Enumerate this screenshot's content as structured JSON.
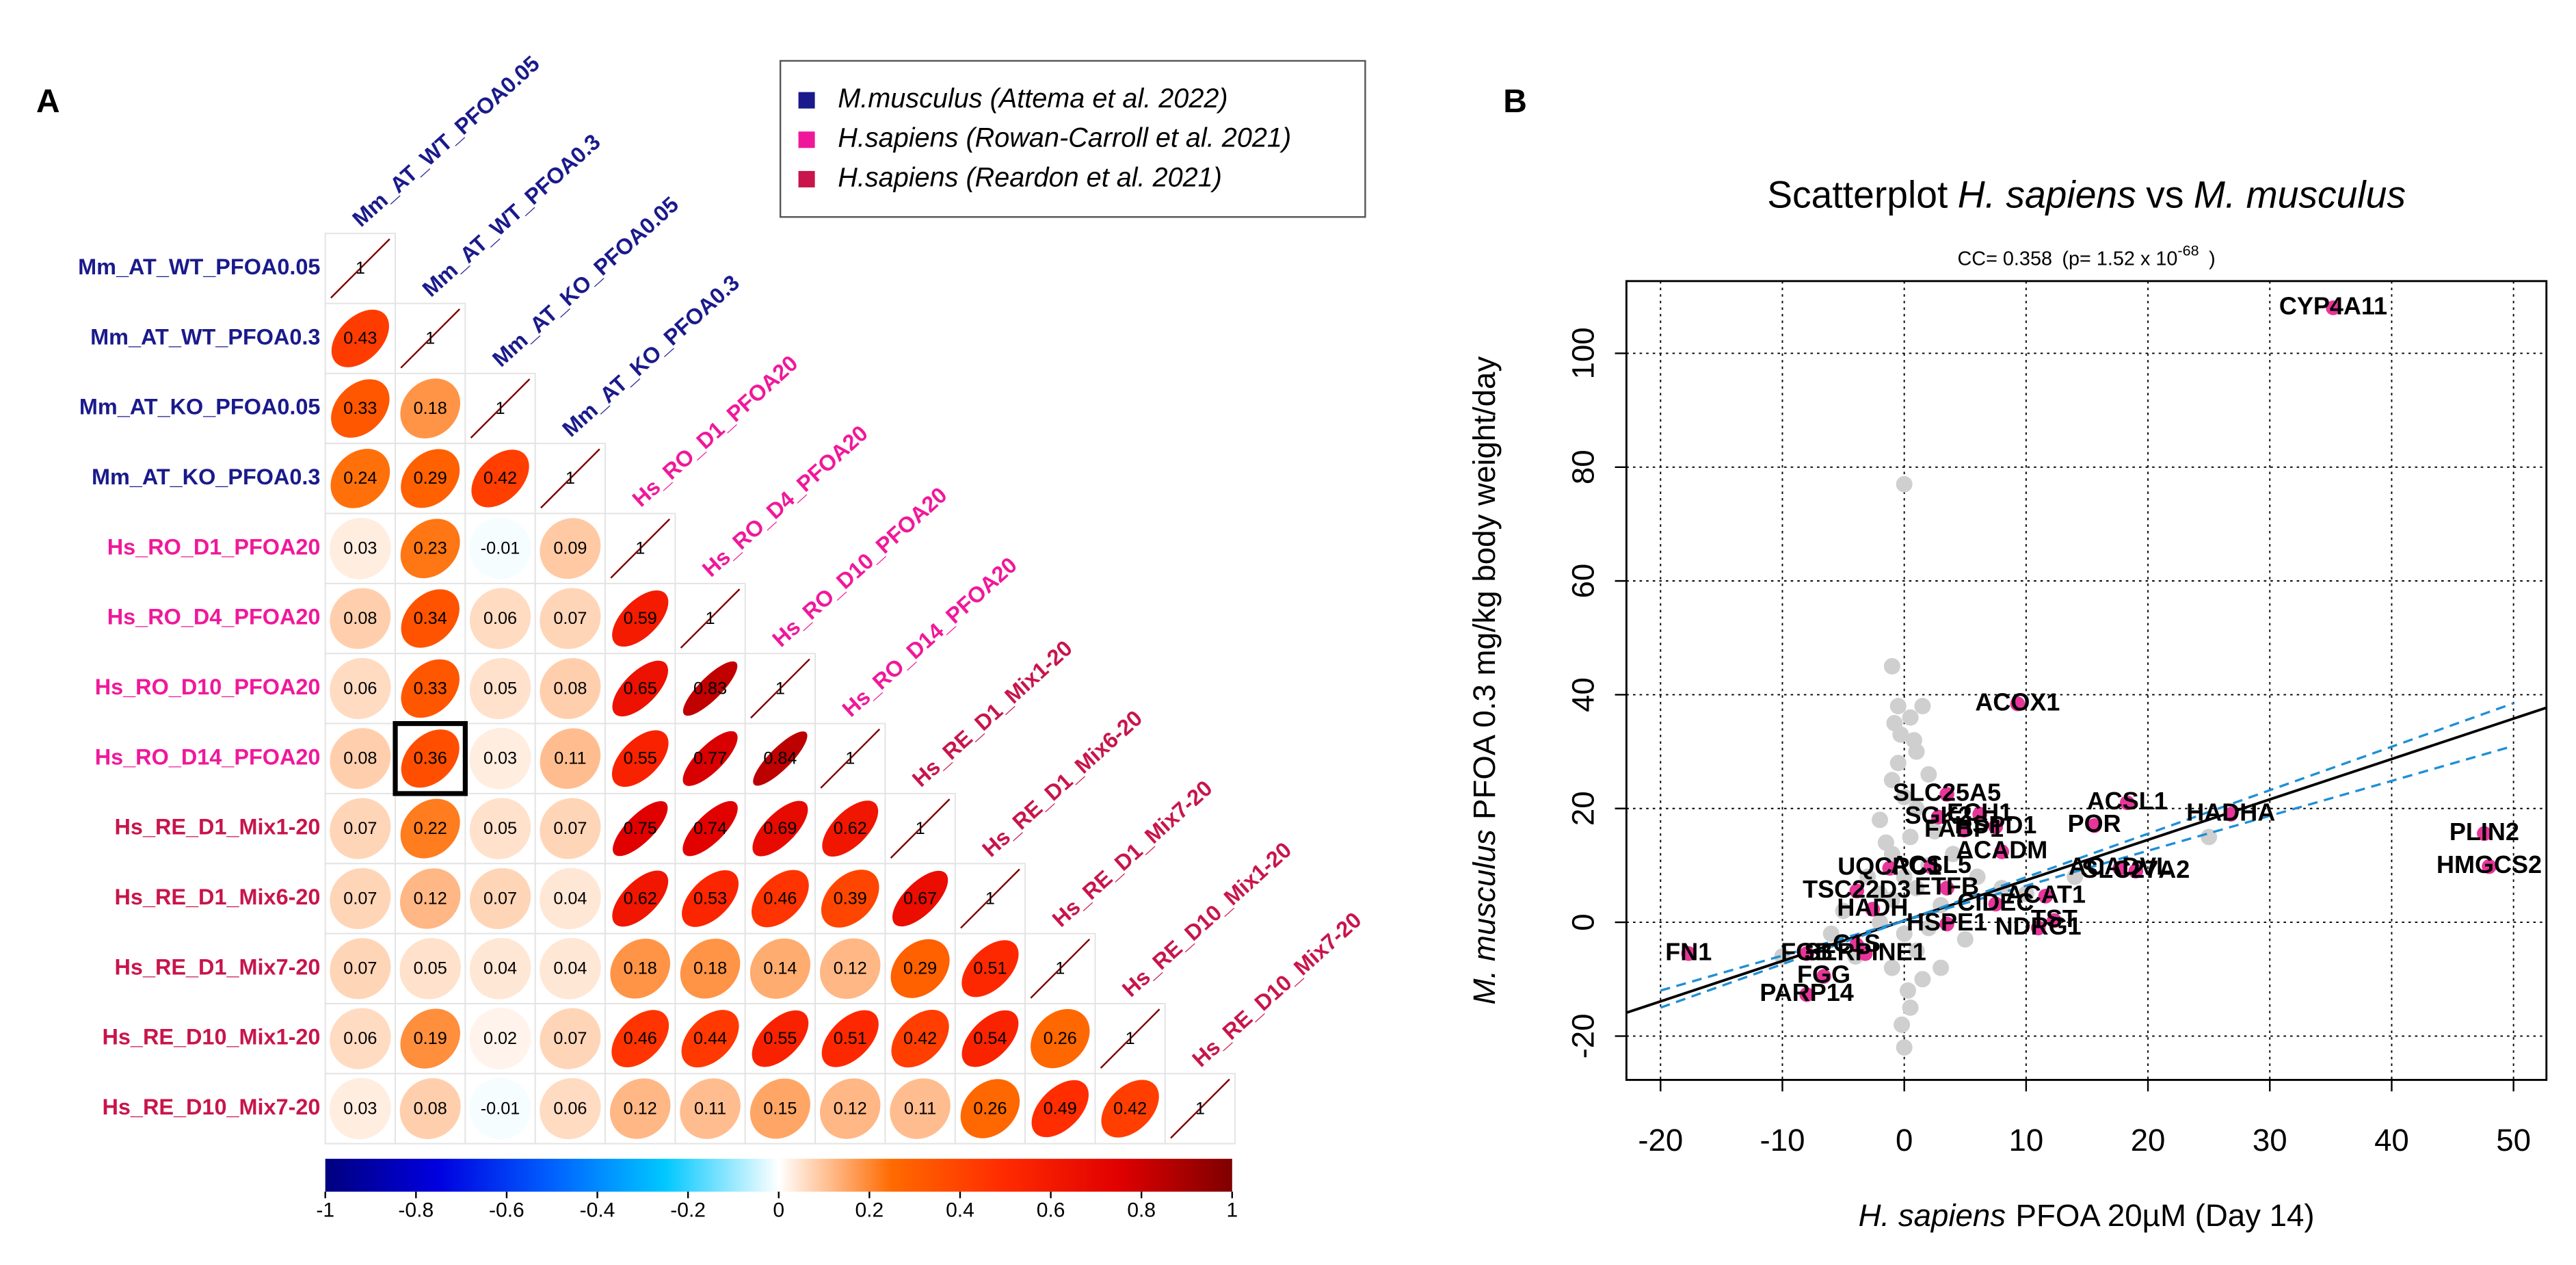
{
  "chart_data": [
    {
      "type": "corrplot",
      "panel": "A",
      "labels": [
        "Mm_AT_WT_PFOA0.05",
        "Mm_AT_WT_PFOA0.3",
        "Mm_AT_KO_PFOA0.05",
        "Mm_AT_KO_PFOA0.3",
        "Hs_RO_D1_PFOA20",
        "Hs_RO_D4_PFOA20",
        "Hs_RO_D10_PFOA20",
        "Hs_RO_D14_PFOA20",
        "Hs_RE_D1_Mix1-20",
        "Hs_RE_D1_Mix6-20",
        "Hs_RE_D1_Mix7-20",
        "Hs_RE_D10_Mix1-20",
        "Hs_RE_D10_Mix7-20"
      ],
      "label_groups": [
        0,
        0,
        0,
        0,
        1,
        1,
        1,
        1,
        2,
        2,
        2,
        2,
        2
      ],
      "groups": [
        {
          "name": "M.musculus (Attema et al. 2022)",
          "color": "#1a1a8c"
        },
        {
          "name": "H.sapiens (Rowan-Carroll et al. 2021)",
          "color": "#f0189a"
        },
        {
          "name": "H.sapiens (Reardon et al. 2021)",
          "color": "#c8154b"
        }
      ],
      "matrix": [
        [
          1
        ],
        [
          0.43,
          1
        ],
        [
          0.33,
          0.18,
          1
        ],
        [
          0.24,
          0.29,
          0.42,
          1
        ],
        [
          0.03,
          0.23,
          -0.01,
          0.09,
          1
        ],
        [
          0.08,
          0.34,
          0.06,
          0.07,
          0.59,
          1
        ],
        [
          0.06,
          0.33,
          0.05,
          0.08,
          0.65,
          0.83,
          1
        ],
        [
          0.08,
          0.36,
          0.03,
          0.11,
          0.55,
          0.77,
          0.84,
          1
        ],
        [
          0.07,
          0.22,
          0.05,
          0.07,
          0.75,
          0.74,
          0.69,
          0.62,
          1
        ],
        [
          0.07,
          0.12,
          0.07,
          0.04,
          0.62,
          0.53,
          0.46,
          0.39,
          0.67,
          1
        ],
        [
          0.07,
          0.05,
          0.04,
          0.04,
          0.18,
          0.18,
          0.14,
          0.12,
          0.29,
          0.51,
          1
        ],
        [
          0.06,
          0.19,
          0.02,
          0.07,
          0.46,
          0.44,
          0.55,
          0.51,
          0.42,
          0.54,
          0.26,
          1
        ],
        [
          0.03,
          0.08,
          -0.01,
          0.06,
          0.12,
          0.11,
          0.15,
          0.12,
          0.11,
          0.26,
          0.49,
          0.42,
          1
        ]
      ],
      "highlight": [
        7,
        1
      ],
      "colormap": [
        "#00007F",
        "#0000E0",
        "#0060FF",
        "#00C8FF",
        "#FFFFFF",
        "#FF6A00",
        "#FF2A00",
        "#E00000",
        "#7F0000"
      ],
      "colorbar_lim": [
        -1,
        1
      ],
      "colorbar_ticks": [
        -1,
        -0.8,
        -0.6,
        -0.4,
        -0.2,
        0,
        0.2,
        0.4,
        0.6,
        0.8,
        1
      ]
    },
    {
      "type": "scatter",
      "panel": "B",
      "title_parts": [
        "Scatterplot",
        "H. sapiens",
        "vs",
        "M. musculus"
      ],
      "subtitle_parts": [
        "CC= 0.358",
        "(p= 1.52 x 10",
        "-68",
        ")"
      ],
      "xlabel_parts": [
        "H. sapiens",
        "PFOA 20µM (Day 14)"
      ],
      "ylabel_parts": [
        "M. musculus",
        "PFOA 0.3 mg/kg body weight/day"
      ],
      "xlim": [
        -22.8,
        52.7
      ],
      "ylim": [
        -27.7,
        112.7
      ],
      "xticks": [
        -20,
        -10,
        0,
        10,
        20,
        30,
        40,
        50
      ],
      "yticks": [
        -20,
        0,
        20,
        40,
        60,
        80,
        100
      ],
      "grid": true,
      "background_points": {
        "color": "#cfcfcf",
        "x": [
          0,
          -1,
          -0.5,
          0.5,
          1.5,
          -0.3,
          1,
          2,
          -1,
          0,
          1,
          -2,
          0.5,
          -1,
          2,
          -3,
          1,
          -1,
          3,
          -2,
          0,
          1,
          -1,
          0.3,
          0.5,
          -0.2,
          0,
          4,
          6,
          8,
          -5,
          -6,
          5,
          3,
          -4,
          2,
          -2,
          1.5,
          0,
          -1.5,
          2.5,
          -0.5,
          0.8,
          -0.8,
          10,
          14,
          -10,
          25
        ],
        "y": [
          77,
          45,
          38,
          36,
          38,
          33,
          30,
          26,
          25,
          22,
          20,
          18,
          15,
          12,
          10,
          8,
          6,
          4,
          3,
          0,
          -2,
          -5,
          -8,
          -12,
          -15,
          -18,
          -22,
          12,
          8,
          6,
          2,
          -2,
          -3,
          -8,
          -6,
          -1,
          5,
          -10,
          8,
          14,
          16,
          28,
          32,
          35,
          5,
          8,
          -6,
          15
        ]
      },
      "points": {
        "color": "#e8359a",
        "labels": [
          "CYP4A11",
          "ACOX1",
          "PLIN2",
          "HMGCS2",
          "FN1",
          "HADHA",
          "ACSL1",
          "HSPD1",
          "ECH1",
          "POR",
          "SLC25A5",
          "SGK2",
          "FABP1",
          "ACADM",
          "ACSL5",
          "ACADVL",
          "SLC27A2",
          "ETFB",
          "ACAT1",
          "CIDEC",
          "UQCRC1",
          "TSC22D3",
          "HADH",
          "C1S",
          "HSPE1",
          "SERPINE1",
          "TST",
          "NDRG1",
          "FGB",
          "FGG",
          "PARP14"
        ],
        "x": [
          35.2,
          9.3,
          47.6,
          48,
          -17.7,
          26.8,
          18.3,
          7.5,
          6.2,
          15.6,
          3.5,
          2.8,
          4.9,
          8,
          2.2,
          17.7,
          19,
          3.5,
          11.6,
          7.5,
          -1.2,
          -3.9,
          -2.6,
          -3.9,
          3.5,
          -3.2,
          12.3,
          11,
          -8,
          -6.6,
          -8
        ],
        "y": [
          108,
          38.4,
          15.6,
          9.8,
          -5.5,
          19,
          21,
          16.8,
          19,
          17,
          22.5,
          18.5,
          16.2,
          12.4,
          9.8,
          9.5,
          9,
          6,
          4.6,
          3.2,
          9.5,
          5.5,
          2.3,
          -4,
          -0.3,
          -5.5,
          0.3,
          -1,
          -5.5,
          -9.5,
          -12.7
        ]
      },
      "fit": {
        "slope": 0.71,
        "intercept": 0.3,
        "color": "#000000"
      },
      "ci_lines": {
        "color": "#1f8fd6",
        "lines": [
          {
            "x": [
              -20,
              50
            ],
            "y": [
              -15,
              38.5
            ]
          },
          {
            "x": [
              -20,
              50
            ],
            "y": [
              -12,
              31
            ]
          }
        ]
      }
    }
  ]
}
